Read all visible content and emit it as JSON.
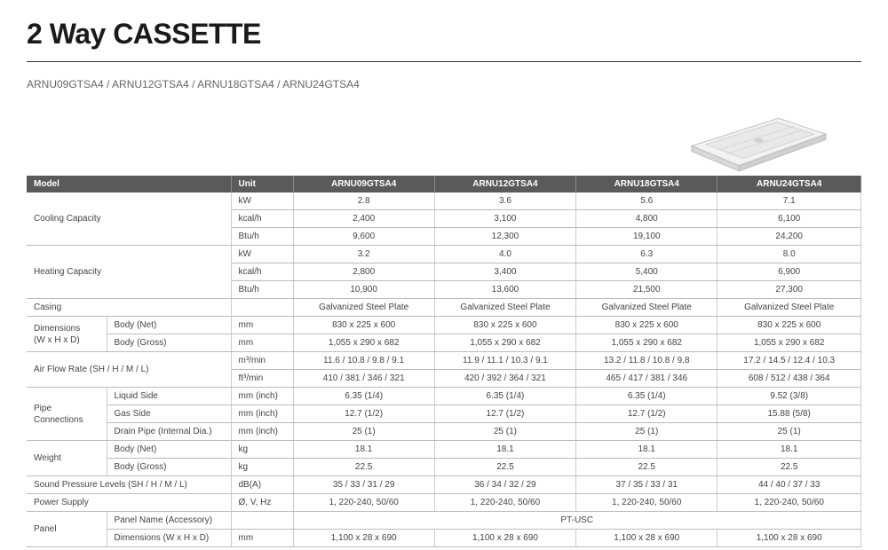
{
  "title": "2 Way CASSETTE",
  "models_line": "ARNU09GTSA4 / ARNU12GTSA4 / ARNU18GTSA4 / ARNU24GTSA4",
  "table": {
    "header": {
      "model": "Model",
      "unit": "Unit",
      "cols": [
        "ARNU09GTSA4",
        "ARNU12GTSA4",
        "ARNU18GTSA4",
        "ARNU24GTSA4"
      ]
    },
    "colors": {
      "header_bg": "#5a5a5a",
      "header_fg": "#ffffff",
      "row_border": "#bbbbbb",
      "cell_border": "#cccccc",
      "text": "#444444"
    },
    "groups": [
      {
        "label": "Cooling Capacity",
        "rows": [
          {
            "sub": "",
            "unit": "kW",
            "vals": [
              "2.8",
              "3.6",
              "5.6",
              "7.1"
            ]
          },
          {
            "sub": "",
            "unit": "kcal/h",
            "vals": [
              "2,400",
              "3,100",
              "4,800",
              "6,100"
            ]
          },
          {
            "sub": "",
            "unit": "Btu/h",
            "vals": [
              "9,600",
              "12,300",
              "19,100",
              "24,200"
            ]
          }
        ]
      },
      {
        "label": "Heating Capacity",
        "rows": [
          {
            "sub": "",
            "unit": "kW",
            "vals": [
              "3.2",
              "4.0",
              "6.3",
              "8.0"
            ]
          },
          {
            "sub": "",
            "unit": "kcal/h",
            "vals": [
              "2,800",
              "3,400",
              "5,400",
              "6,900"
            ]
          },
          {
            "sub": "",
            "unit": "Btu/h",
            "vals": [
              "10,900",
              "13,600",
              "21,500",
              "27,300"
            ]
          }
        ]
      },
      {
        "label": "Casing",
        "rows": [
          {
            "sub": "",
            "unit": "",
            "vals": [
              "Galvanized Steel Plate",
              "Galvanized Steel Plate",
              "Galvanized Steel Plate",
              "Galvanized Steel Plate"
            ]
          }
        ]
      },
      {
        "label": "Dimensions\n(W x H x D)",
        "rows": [
          {
            "sub": "Body (Net)",
            "unit": "mm",
            "vals": [
              "830 x 225 x 600",
              "830 x 225 x 600",
              "830 x 225 x 600",
              "830 x 225 x 600"
            ]
          },
          {
            "sub": "Body (Gross)",
            "unit": "mm",
            "vals": [
              "1,055 x 290 x 682",
              "1,055 x 290 x 682",
              "1,055 x 290 x 682",
              "1,055 x 290 x 682"
            ]
          }
        ]
      },
      {
        "label": "Air Flow Rate (SH / H / M / L)",
        "rows": [
          {
            "sub": "",
            "unit": "m³/min",
            "vals": [
              "11.6 / 10.8 / 9.8 / 9.1",
              "11.9 / 11.1 / 10.3 / 9.1",
              "13.2 / 11.8 / 10.8 / 9.8",
              "17.2 / 14.5 / 12.4 / 10.3"
            ]
          },
          {
            "sub": "",
            "unit": "ft³/min",
            "vals": [
              "410 / 381 / 346 / 321",
              "420 / 392 / 364 / 321",
              "465 / 417 / 381 / 346",
              "608 / 512 / 438 / 364"
            ]
          }
        ]
      },
      {
        "label": "Pipe\nConnections",
        "rows": [
          {
            "sub": "Liquid Side",
            "unit": "mm (inch)",
            "vals": [
              "6.35 (1/4)",
              "6.35 (1/4)",
              "6.35 (1/4)",
              "9.52 (3/8)"
            ]
          },
          {
            "sub": "Gas Side",
            "unit": "mm (inch)",
            "vals": [
              "12.7 (1/2)",
              "12.7 (1/2)",
              "12.7 (1/2)",
              "15.88 (5/8)"
            ]
          },
          {
            "sub": "Drain Pipe (Internal Dia.)",
            "unit": "mm (inch)",
            "vals": [
              "25 (1)",
              "25 (1)",
              "25 (1)",
              "25 (1)"
            ]
          }
        ]
      },
      {
        "label": "Weight",
        "rows": [
          {
            "sub": "Body (Net)",
            "unit": "kg",
            "vals": [
              "18.1",
              "18.1",
              "18.1",
              "18.1"
            ]
          },
          {
            "sub": "Body (Gross)",
            "unit": "kg",
            "vals": [
              "22.5",
              "22.5",
              "22.5",
              "22.5"
            ]
          }
        ]
      },
      {
        "label": "Sound Pressure Levels (SH / H / M / L)",
        "rows": [
          {
            "sub": "",
            "unit": "dB(A)",
            "vals": [
              "35 / 33 / 31 / 29",
              "36 / 34 / 32 / 29",
              "37 / 35 / 33 / 31",
              "44 / 40 / 37 / 33"
            ]
          }
        ]
      },
      {
        "label": "Power Supply",
        "rows": [
          {
            "sub": "",
            "unit": "Ø, V, Hz",
            "vals": [
              "1, 220-240, 50/60",
              "1, 220-240, 50/60",
              "1, 220-240, 50/60",
              "1, 220-240, 50/60"
            ]
          }
        ]
      },
      {
        "label": "Panel",
        "rows": [
          {
            "sub": "Panel Name (Accessory)",
            "unit": "",
            "span": "PT-USC"
          },
          {
            "sub": "Dimensions (W x H x D)",
            "unit": "mm",
            "vals": [
              "1,100 x 28 x 690",
              "1,100 x 28 x 690",
              "1,100 x 28 x 690",
              "1,100 x 28 x 690"
            ]
          }
        ]
      }
    ]
  }
}
